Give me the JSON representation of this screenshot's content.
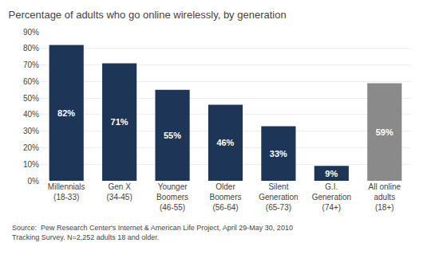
{
  "chart_data": {
    "type": "bar",
    "title": "Percentage of adults who go online wirelessly, by generation",
    "categories": [
      "Millennials\n(18-33)",
      "Gen X\n(34-45)",
      "Younger\nBoomers\n(46-55)",
      "Older\nBoomers\n(56-64)",
      "Silent\nGeneration\n(65-73)",
      "G.I.\nGeneration\n(74+)",
      "All online\nadults\n(18+)"
    ],
    "values": [
      82,
      71,
      55,
      46,
      33,
      9,
      59
    ],
    "value_labels": [
      "82%",
      "71%",
      "55%",
      "46%",
      "33%",
      "9%",
      "59%"
    ],
    "colors": [
      "#1d3557",
      "#1d3557",
      "#1d3557",
      "#1d3557",
      "#1d3557",
      "#1d3557",
      "#8a8a8a"
    ],
    "data_labels": true,
    "ylim": [
      0,
      90
    ],
    "yticks": [
      {
        "value": 0,
        "label": "0%"
      },
      {
        "value": 10,
        "label": "10%"
      },
      {
        "value": 20,
        "label": "20%"
      },
      {
        "value": 30,
        "label": "30%"
      },
      {
        "value": 40,
        "label": "40%"
      },
      {
        "value": 50,
        "label": "50%"
      },
      {
        "value": 60,
        "label": "60%"
      },
      {
        "value": 70,
        "label": "70%"
      },
      {
        "value": 80,
        "label": "80%"
      },
      {
        "value": 90,
        "label": "90%"
      }
    ],
    "grid": true,
    "annotations": [
      "Source:  Pew Research Center's Internet & American Life Project, April 29-May 30, 2010\nTracking Survey. N=2,252 adults 18 and older."
    ]
  }
}
